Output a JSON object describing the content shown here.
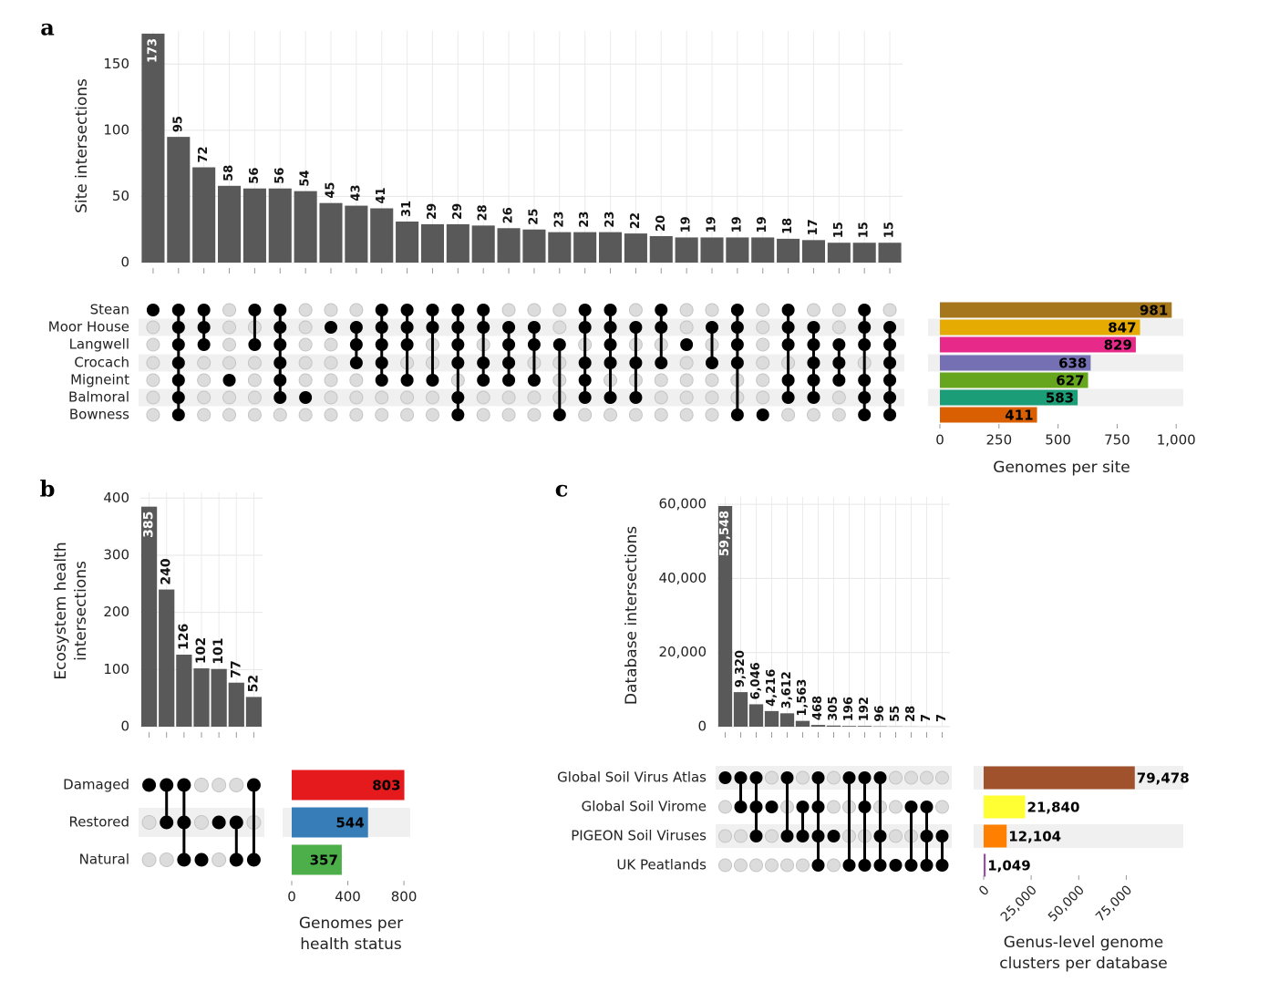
{
  "chart_data": [
    {
      "type": "upset",
      "panel_label": "a",
      "ylabel": [
        "Site intersections"
      ],
      "ylim": [
        0,
        175
      ],
      "yticks": [
        0,
        50,
        100,
        150
      ],
      "grid": true,
      "values": [
        173,
        95,
        72,
        58,
        56,
        56,
        54,
        45,
        43,
        41,
        31,
        29,
        29,
        28,
        26,
        25,
        23,
        23,
        23,
        22,
        20,
        19,
        19,
        19,
        19,
        18,
        17,
        15,
        15,
        15
      ],
      "sets": [
        "Stean",
        "Moor House",
        "Langwell",
        "Crocach",
        "Migneint",
        "Balmoral",
        "Bowness"
      ],
      "membership": [
        [
          1,
          0,
          0,
          0,
          0,
          0,
          0
        ],
        [
          1,
          1,
          1,
          1,
          1,
          1,
          1
        ],
        [
          1,
          1,
          1,
          0,
          0,
          0,
          0
        ],
        [
          0,
          0,
          0,
          0,
          1,
          0,
          0
        ],
        [
          1,
          0,
          1,
          0,
          0,
          0,
          0
        ],
        [
          1,
          1,
          1,
          1,
          1,
          1,
          0
        ],
        [
          0,
          0,
          0,
          0,
          0,
          1,
          0
        ],
        [
          0,
          1,
          0,
          0,
          0,
          0,
          0
        ],
        [
          0,
          1,
          1,
          1,
          0,
          0,
          0
        ],
        [
          1,
          1,
          1,
          1,
          1,
          0,
          0
        ],
        [
          1,
          1,
          1,
          0,
          1,
          0,
          0
        ],
        [
          1,
          1,
          0,
          0,
          1,
          0,
          0
        ],
        [
          1,
          1,
          1,
          1,
          0,
          1,
          1
        ],
        [
          1,
          1,
          0,
          1,
          1,
          0,
          0
        ],
        [
          0,
          1,
          1,
          1,
          1,
          0,
          0
        ],
        [
          0,
          1,
          1,
          0,
          1,
          0,
          0
        ],
        [
          0,
          0,
          1,
          0,
          0,
          0,
          1
        ],
        [
          1,
          1,
          0,
          1,
          1,
          1,
          0
        ],
        [
          1,
          1,
          1,
          1,
          0,
          1,
          0
        ],
        [
          0,
          1,
          0,
          1,
          0,
          1,
          0
        ],
        [
          1,
          1,
          0,
          1,
          0,
          0,
          0
        ],
        [
          0,
          0,
          1,
          0,
          0,
          0,
          0
        ],
        [
          0,
          1,
          0,
          1,
          0,
          0,
          0
        ],
        [
          1,
          1,
          1,
          1,
          0,
          0,
          1
        ],
        [
          0,
          0,
          0,
          0,
          0,
          0,
          1
        ],
        [
          1,
          1,
          1,
          0,
          1,
          1,
          0
        ],
        [
          0,
          1,
          1,
          1,
          1,
          1,
          0
        ],
        [
          0,
          0,
          1,
          1,
          1,
          0,
          0
        ],
        [
          1,
          1,
          1,
          0,
          1,
          1,
          1
        ],
        [
          0,
          1,
          1,
          1,
          1,
          1,
          1
        ]
      ],
      "set_sizes": {
        "values": [
          981,
          847,
          829,
          638,
          627,
          583,
          411
        ],
        "colors": [
          "#a6761d",
          "#e6ab02",
          "#e7298a",
          "#7570b3",
          "#66a61e",
          "#1b9e77",
          "#d95f02"
        ],
        "xlim": [
          0,
          1030
        ],
        "xticks": [
          0,
          250,
          500,
          750,
          {
            "value": 1000,
            "label": "1,000"
          }
        ],
        "xlabel": [
          "Genomes per site"
        ],
        "label_position": "inside"
      }
    },
    {
      "type": "upset",
      "panel_label": "b",
      "ylabel": [
        "Ecosystem health",
        "intersections"
      ],
      "ylim": [
        0,
        410
      ],
      "yticks": [
        0,
        100,
        200,
        300,
        400
      ],
      "grid": true,
      "values": [
        385,
        240,
        126,
        102,
        101,
        77,
        52
      ],
      "sets": [
        "Damaged",
        "Restored",
        "Natural"
      ],
      "membership": [
        [
          1,
          0,
          0
        ],
        [
          1,
          1,
          0
        ],
        [
          1,
          1,
          1
        ],
        [
          0,
          0,
          1
        ],
        [
          0,
          1,
          0
        ],
        [
          0,
          1,
          1
        ],
        [
          1,
          0,
          1
        ]
      ],
      "set_sizes": {
        "values": [
          803,
          544,
          357
        ],
        "colors": [
          "#e41a1c",
          "#377eb8",
          "#4daf4a"
        ],
        "xlim": [
          0,
          845
        ],
        "xticks": [
          0,
          400,
          800
        ],
        "xlabel": [
          "Genomes per",
          "health status"
        ],
        "label_position": "inside"
      }
    },
    {
      "type": "upset",
      "panel_label": "c",
      "ylabel": [
        "Database intersections"
      ],
      "ylim": [
        0,
        62000
      ],
      "yticks": [
        0,
        {
          "value": 20000,
          "label": "20,000"
        },
        {
          "value": 40000,
          "label": "40,000"
        },
        {
          "value": 60000,
          "label": "60,000"
        }
      ],
      "grid": true,
      "values": [
        59548,
        9320,
        6046,
        4216,
        3612,
        1563,
        468,
        305,
        196,
        192,
        96,
        55,
        28,
        7,
        7
      ],
      "value_labels": [
        "59,548",
        "9,320",
        "6,046",
        "4,216",
        "3,612",
        "1,563",
        "468",
        "305",
        "196",
        "192",
        "96",
        "55",
        "28",
        "7",
        "7"
      ],
      "sets": [
        "Global Soil Virus Atlas",
        "Global Soil Virome",
        "PIGEON Soil Viruses",
        "UK Peatlands"
      ],
      "membership": [
        [
          1,
          0,
          0,
          0
        ],
        [
          1,
          1,
          0,
          0
        ],
        [
          1,
          1,
          1,
          0
        ],
        [
          0,
          1,
          0,
          0
        ],
        [
          1,
          0,
          1,
          0
        ],
        [
          0,
          1,
          1,
          0
        ],
        [
          1,
          1,
          1,
          1
        ],
        [
          0,
          0,
          1,
          0
        ],
        [
          1,
          0,
          0,
          1
        ],
        [
          1,
          1,
          0,
          1
        ],
        [
          1,
          0,
          1,
          1
        ],
        [
          0,
          0,
          0,
          1
        ],
        [
          0,
          1,
          0,
          1
        ],
        [
          0,
          1,
          1,
          1
        ],
        [
          0,
          0,
          1,
          1
        ]
      ],
      "set_sizes": {
        "values": [
          79478,
          21840,
          12104,
          1049
        ],
        "value_labels": [
          "79,478",
          "21,840",
          "12,104",
          "1,049"
        ],
        "colors": [
          "#a0522d",
          "#ffff33",
          "#ff7f00",
          "#984ea3"
        ],
        "xlim": [
          0,
          105000
        ],
        "xticks": [
          0,
          {
            "value": 25000,
            "label": "25,000"
          },
          {
            "value": 50000,
            "label": "50,000"
          },
          {
            "value": 75000,
            "label": "75,000"
          }
        ],
        "xlabel": [
          "Genus-level genome",
          "clusters per database"
        ],
        "label_position": "outside"
      }
    }
  ]
}
